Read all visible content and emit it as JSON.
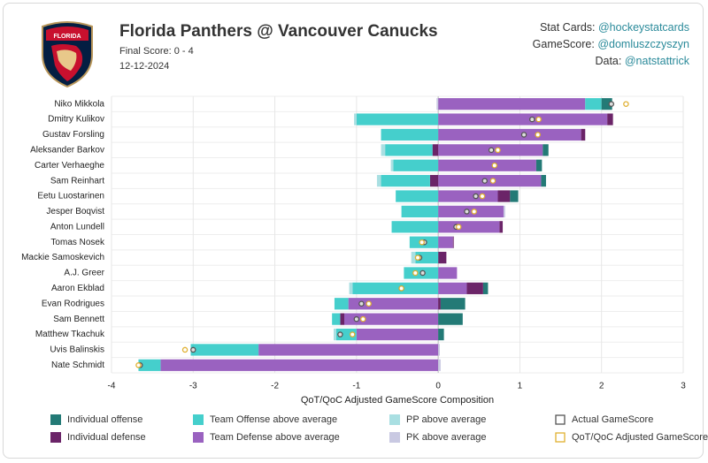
{
  "chart_data": {
    "type": "bar",
    "title": "Florida Panthers @ Vancouver Canucks",
    "subtitle": "Final Score: 0 - 4",
    "date": "12-12-2024",
    "credits": [
      {
        "label": "Stat Cards:",
        "handle": "@hockeystatcards"
      },
      {
        "label": "GameScore:",
        "handle": "@domluszczyszyn"
      },
      {
        "label": "Data:",
        "handle": "@natstattrick"
      }
    ],
    "x_label": "QoT/QoC Adjusted GameScore Composition",
    "xlim": [
      -4,
      3
    ],
    "xticks": [
      -4,
      -3,
      -2,
      -1,
      0,
      1,
      2,
      3
    ],
    "grid": true,
    "categories": [
      "Niko Mikkola",
      "Dmitry Kulikov",
      "Gustav Forsling",
      "Aleksander Barkov",
      "Carter Verhaeghe",
      "Sam Reinhart",
      "Eetu Luostarinen",
      "Jesper Boqvist",
      "Anton Lundell",
      "Tomas Nosek",
      "Mackie Samoskevich",
      "A.J. Greer",
      "Aaron Ekblad",
      "Evan Rodrigues",
      "Sam Bennett",
      "Matthew Tkachuk",
      "Uvis Balinskis",
      "Nate Schmidt"
    ],
    "series": [
      {
        "name": "Team Defense above average",
        "color": "#9a62c0",
        "values": [
          1.8,
          2.07,
          1.75,
          1.28,
          1.2,
          1.26,
          0.73,
          0.8,
          0.75,
          0.18,
          0,
          0.23,
          0.35,
          -1.1,
          -1.15,
          -1.0,
          -2.2,
          -3.4
        ]
      },
      {
        "name": "Individual defense",
        "color": "#6b2468",
        "values": [
          0,
          0.07,
          0.05,
          -0.07,
          0,
          -0.1,
          0.15,
          0,
          0.04,
          0.01,
          0.1,
          0,
          0.2,
          0.03,
          -0.05,
          0,
          0,
          0
        ]
      },
      {
        "name": "Team Offense above average",
        "color": "#45cfcc",
        "values": [
          0.2,
          -1.0,
          -0.7,
          -0.58,
          -0.55,
          -0.6,
          -0.52,
          -0.45,
          -0.57,
          -0.35,
          -0.28,
          -0.42,
          -1.05,
          -0.17,
          -0.1,
          -0.25,
          -0.83,
          -0.27
        ]
      },
      {
        "name": "Individual offense",
        "color": "#237a76",
        "values": [
          0.13,
          0,
          0,
          0.07,
          0.07,
          0.06,
          0.1,
          0,
          0,
          0,
          0,
          0,
          0.06,
          0.3,
          0.3,
          0.07,
          0,
          0
        ]
      },
      {
        "name": "PP above average",
        "color": "#a9dfe2",
        "values": [
          0,
          -0.03,
          0,
          -0.05,
          -0.03,
          -0.05,
          0,
          0,
          0,
          0,
          -0.05,
          0,
          -0.04,
          0,
          0,
          -0.03,
          0,
          0
        ]
      },
      {
        "name": "PK above average",
        "color": "#c9c9e2",
        "values": [
          -0.02,
          0,
          0,
          0,
          0,
          0,
          0,
          0.02,
          0,
          0,
          0,
          0,
          0,
          0,
          0,
          0,
          0.02,
          0.03
        ]
      }
    ],
    "markers": [
      {
        "name": "Actual GameScore",
        "color": "#555555",
        "values": [
          2.12,
          1.15,
          1.05,
          0.65,
          0.69,
          0.57,
          0.46,
          0.35,
          0.22,
          -0.17,
          -0.23,
          -0.19,
          -0.45,
          -0.94,
          -1.0,
          -1.2,
          -3.0,
          -3.65
        ]
      },
      {
        "name": "QoT/QoC Adjusted GameScore",
        "color": "#e0b030",
        "values": [
          2.3,
          1.23,
          1.22,
          0.73,
          0.69,
          0.67,
          0.54,
          0.44,
          0.25,
          -0.2,
          -0.25,
          -0.28,
          -0.45,
          -0.85,
          -0.92,
          -1.05,
          -3.1,
          -3.67
        ]
      }
    ],
    "legend_order": [
      [
        "series",
        3
      ],
      [
        "series",
        2
      ],
      [
        "series",
        4
      ],
      [
        "markers",
        0
      ],
      [
        "series",
        1
      ],
      [
        "series",
        0
      ],
      [
        "series",
        5
      ],
      [
        "markers",
        1
      ]
    ]
  }
}
